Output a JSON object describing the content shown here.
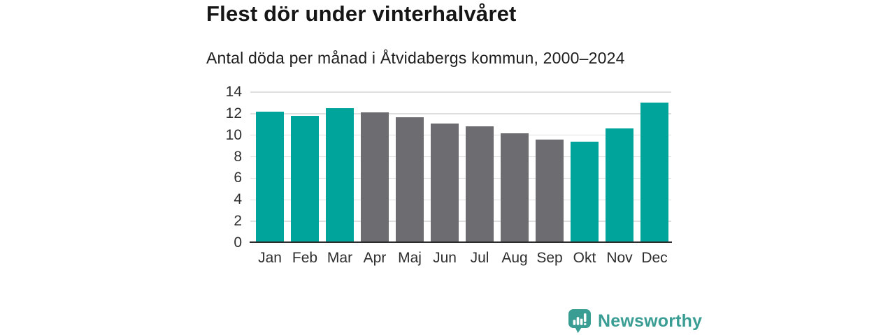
{
  "header": {
    "title": "Flest dör under vinterhalvåret",
    "subtitle": "Antal döda per månad i Åtvidabergs kommun, 2000–2024"
  },
  "branding": {
    "name": "Newsworthy",
    "icon": "newsworthy-speech-bubble-bar-chart-icon",
    "color": "#3a9d94"
  },
  "chart_data": {
    "type": "bar",
    "title": "Flest dör under vinterhalvåret",
    "subtitle": "Antal döda per månad i Åtvidabergs kommun, 2000–2024",
    "categories": [
      "Jan",
      "Feb",
      "Mar",
      "Apr",
      "Maj",
      "Jun",
      "Jul",
      "Aug",
      "Sep",
      "Okt",
      "Nov",
      "Dec"
    ],
    "values": [
      12.2,
      11.8,
      12.5,
      12.1,
      11.7,
      11.1,
      10.8,
      10.2,
      9.6,
      9.4,
      10.6,
      13.0
    ],
    "groups": [
      "winter",
      "winter",
      "winter",
      "summer",
      "summer",
      "summer",
      "summer",
      "summer",
      "summer",
      "winter",
      "winter",
      "winter"
    ],
    "colors": {
      "winter": "#00a49a",
      "summer": "#6c6c71"
    },
    "xlabel": "",
    "ylabel": "",
    "ylim": [
      0,
      14
    ],
    "yticks": [
      0,
      2,
      4,
      6,
      8,
      10,
      12,
      14
    ],
    "grid": true,
    "legend": "none",
    "gridline_color": "#dfdfdf",
    "axis_color": "#2b2b2b"
  }
}
